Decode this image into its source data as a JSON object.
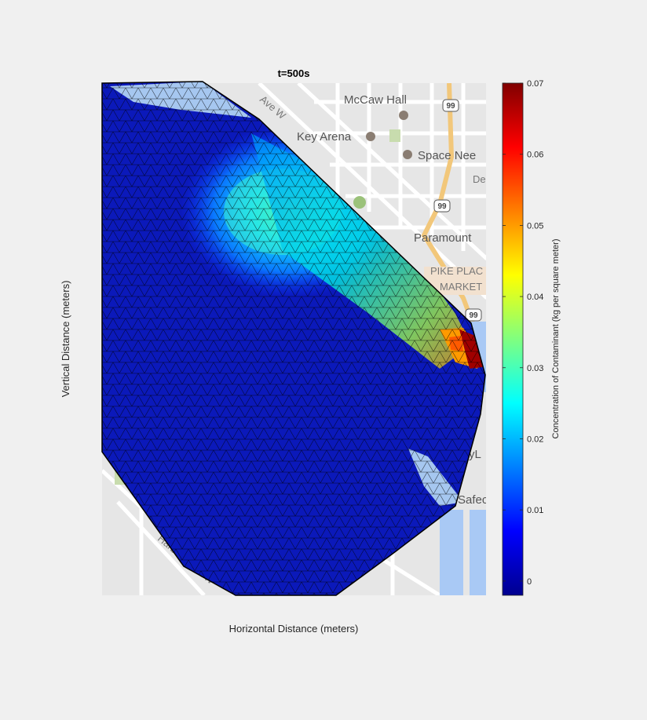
{
  "chart_data": {
    "type": "heatmap",
    "title": "t=500s",
    "xlabel": "Horizontal Distance (meters)",
    "ylabel": "Vertical Distance (meters)",
    "colorbar": {
      "label": "Concentration of Contaminant (kg per square meter)",
      "colormap": "jet",
      "range": [
        -0.002,
        0.07
      ],
      "ticks": [
        0,
        0.01,
        0.02,
        0.03,
        0.04,
        0.05,
        0.06,
        0.07
      ],
      "tick_labels": [
        "0",
        "0.01",
        "0.02",
        "0.03",
        "0.04",
        "0.05",
        "0.06",
        "0.07"
      ]
    },
    "axis_ticks": "off",
    "grid": false,
    "background": "street map",
    "map_labels": [
      {
        "text": "McCaw Hall"
      },
      {
        "text": "Key Arena"
      },
      {
        "text": "Space Nee"
      },
      {
        "text": "Paramount"
      },
      {
        "text": "PIKE PLAC"
      },
      {
        "text": "MARKET"
      },
      {
        "text": "Harbor Ave SW"
      },
      {
        "text": "Ave W"
      },
      {
        "text": "Der"
      },
      {
        "text": "yL"
      },
      {
        "text": "Safec"
      }
    ],
    "highway_shields": [
      "99",
      "99",
      "99"
    ]
  }
}
